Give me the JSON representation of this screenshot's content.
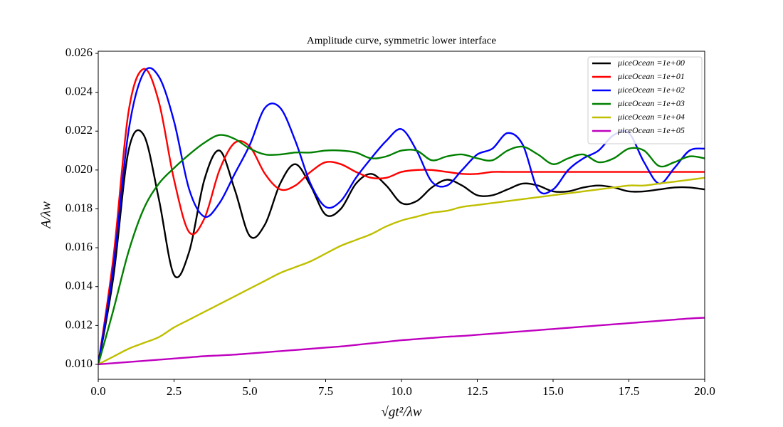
{
  "chart_data": {
    "type": "line",
    "title": "Amplitude curve, symmetric lower interface",
    "x_label": "√gt²/λw",
    "y_label": "A/λw",
    "xlim": [
      0,
      20
    ],
    "ylim": [
      0.00923,
      0.02611
    ],
    "xticks": [
      {
        "value": 0,
        "label": "0.0"
      },
      2.5,
      {
        "value": 5,
        "label": "5.0"
      },
      7.5,
      {
        "value": 10,
        "label": "10.0"
      },
      12.5,
      {
        "value": 15,
        "label": "15.0"
      },
      17.5,
      {
        "value": 20,
        "label": "20.0"
      }
    ],
    "yticks": [
      {
        "value": 0.01,
        "label": "0.010"
      },
      0.012,
      0.014,
      0.016,
      0.018,
      {
        "value": 0.02,
        "label": "0.020"
      },
      0.022,
      0.024,
      0.026
    ],
    "grid": false,
    "legend": "upper right",
    "x": [
      0,
      0.5,
      1,
      1.5,
      2,
      2.5,
      3,
      3.5,
      4,
      4.5,
      5,
      5.5,
      6,
      6.5,
      7,
      7.5,
      8,
      8.5,
      9,
      9.5,
      10,
      10.5,
      11,
      11.5,
      12,
      12.5,
      13,
      13.5,
      14,
      14.5,
      15,
      15.5,
      16,
      16.5,
      17,
      17.5,
      18,
      18.5,
      19,
      19.5,
      20
    ],
    "series": [
      {
        "name": "μiceOcean =1e+00",
        "color": "#000000",
        "values": [
          0.01,
          0.0145,
          0.021,
          0.0218,
          0.0185,
          0.0146,
          0.0158,
          0.0195,
          0.021,
          0.019,
          0.0166,
          0.0172,
          0.0193,
          0.0203,
          0.0192,
          0.0177,
          0.018,
          0.0193,
          0.0198,
          0.0192,
          0.0183,
          0.0184,
          0.0191,
          0.0195,
          0.0192,
          0.0187,
          0.0187,
          0.019,
          0.0193,
          0.0192,
          0.0189,
          0.0189,
          0.0191,
          0.0192,
          0.0191,
          0.0189,
          0.0189,
          0.019,
          0.0191,
          0.0191,
          0.019
        ]
      },
      {
        "name": "μiceOcean =1e+01",
        "color": "#ff0000",
        "values": [
          0.01,
          0.0155,
          0.023,
          0.0252,
          0.0235,
          0.0195,
          0.0168,
          0.0175,
          0.02,
          0.0214,
          0.0212,
          0.0198,
          0.019,
          0.0192,
          0.0199,
          0.0204,
          0.0203,
          0.0199,
          0.0196,
          0.0196,
          0.0199,
          0.02,
          0.02,
          0.0199,
          0.0198,
          0.0198,
          0.0199,
          0.0199,
          0.0199,
          0.0199,
          0.0199,
          0.0199,
          0.0199,
          0.0199,
          0.0199,
          0.0199,
          0.0199,
          0.0199,
          0.0199,
          0.0199,
          0.0199
        ]
      },
      {
        "name": "μiceOcean =1e+02",
        "color": "#0000ff",
        "values": [
          0.01,
          0.015,
          0.022,
          0.025,
          0.0248,
          0.0225,
          0.019,
          0.0176,
          0.0183,
          0.0198,
          0.0213,
          0.0232,
          0.0232,
          0.0215,
          0.0193,
          0.0181,
          0.0184,
          0.0196,
          0.0206,
          0.0215,
          0.0221,
          0.021,
          0.0194,
          0.0192,
          0.02,
          0.0208,
          0.0211,
          0.0219,
          0.0213,
          0.019,
          0.019,
          0.02,
          0.0206,
          0.021,
          0.0218,
          0.0219,
          0.0204,
          0.0193,
          0.0201,
          0.021,
          0.0211
        ]
      },
      {
        "name": "μiceOcean =1e+03",
        "color": "#008000",
        "values": [
          0.01,
          0.0128,
          0.0158,
          0.018,
          0.0193,
          0.0201,
          0.0208,
          0.0214,
          0.0218,
          0.0216,
          0.0211,
          0.0208,
          0.0208,
          0.0209,
          0.0209,
          0.021,
          0.021,
          0.0209,
          0.0206,
          0.0207,
          0.021,
          0.021,
          0.0205,
          0.0207,
          0.0208,
          0.0206,
          0.0205,
          0.021,
          0.0212,
          0.0208,
          0.0203,
          0.0206,
          0.0208,
          0.0204,
          0.0206,
          0.0211,
          0.021,
          0.0202,
          0.0204,
          0.0207,
          0.0206
        ]
      },
      {
        "name": "μiceOcean =1e+04",
        "color": "#bfbf00",
        "values": [
          0.01,
          0.0104,
          0.0108,
          0.0111,
          0.0114,
          0.0119,
          0.0123,
          0.0127,
          0.0131,
          0.0135,
          0.0139,
          0.0143,
          0.0147,
          0.015,
          0.0153,
          0.0157,
          0.0161,
          0.0164,
          0.0167,
          0.0171,
          0.0174,
          0.0176,
          0.0178,
          0.0179,
          0.0181,
          0.0182,
          0.0183,
          0.0184,
          0.0185,
          0.0186,
          0.0187,
          0.0188,
          0.0189,
          0.019,
          0.0191,
          0.0192,
          0.0192,
          0.0193,
          0.0194,
          0.0195,
          0.0196
        ]
      },
      {
        "name": "μiceOcean =1e+05",
        "color": "#bf00bf",
        "values": [
          0.01,
          0.01006,
          0.01012,
          0.01018,
          0.01024,
          0.0103,
          0.01036,
          0.01042,
          0.01046,
          0.0105,
          0.01056,
          0.01062,
          0.01068,
          0.01074,
          0.0108,
          0.01086,
          0.01092,
          0.011,
          0.01108,
          0.01116,
          0.01124,
          0.0113,
          0.01136,
          0.01142,
          0.01146,
          0.01152,
          0.01158,
          0.01164,
          0.0117,
          0.01176,
          0.01182,
          0.01188,
          0.01194,
          0.012,
          0.01206,
          0.01212,
          0.01218,
          0.01224,
          0.0123,
          0.01236,
          0.0124
        ]
      }
    ]
  }
}
